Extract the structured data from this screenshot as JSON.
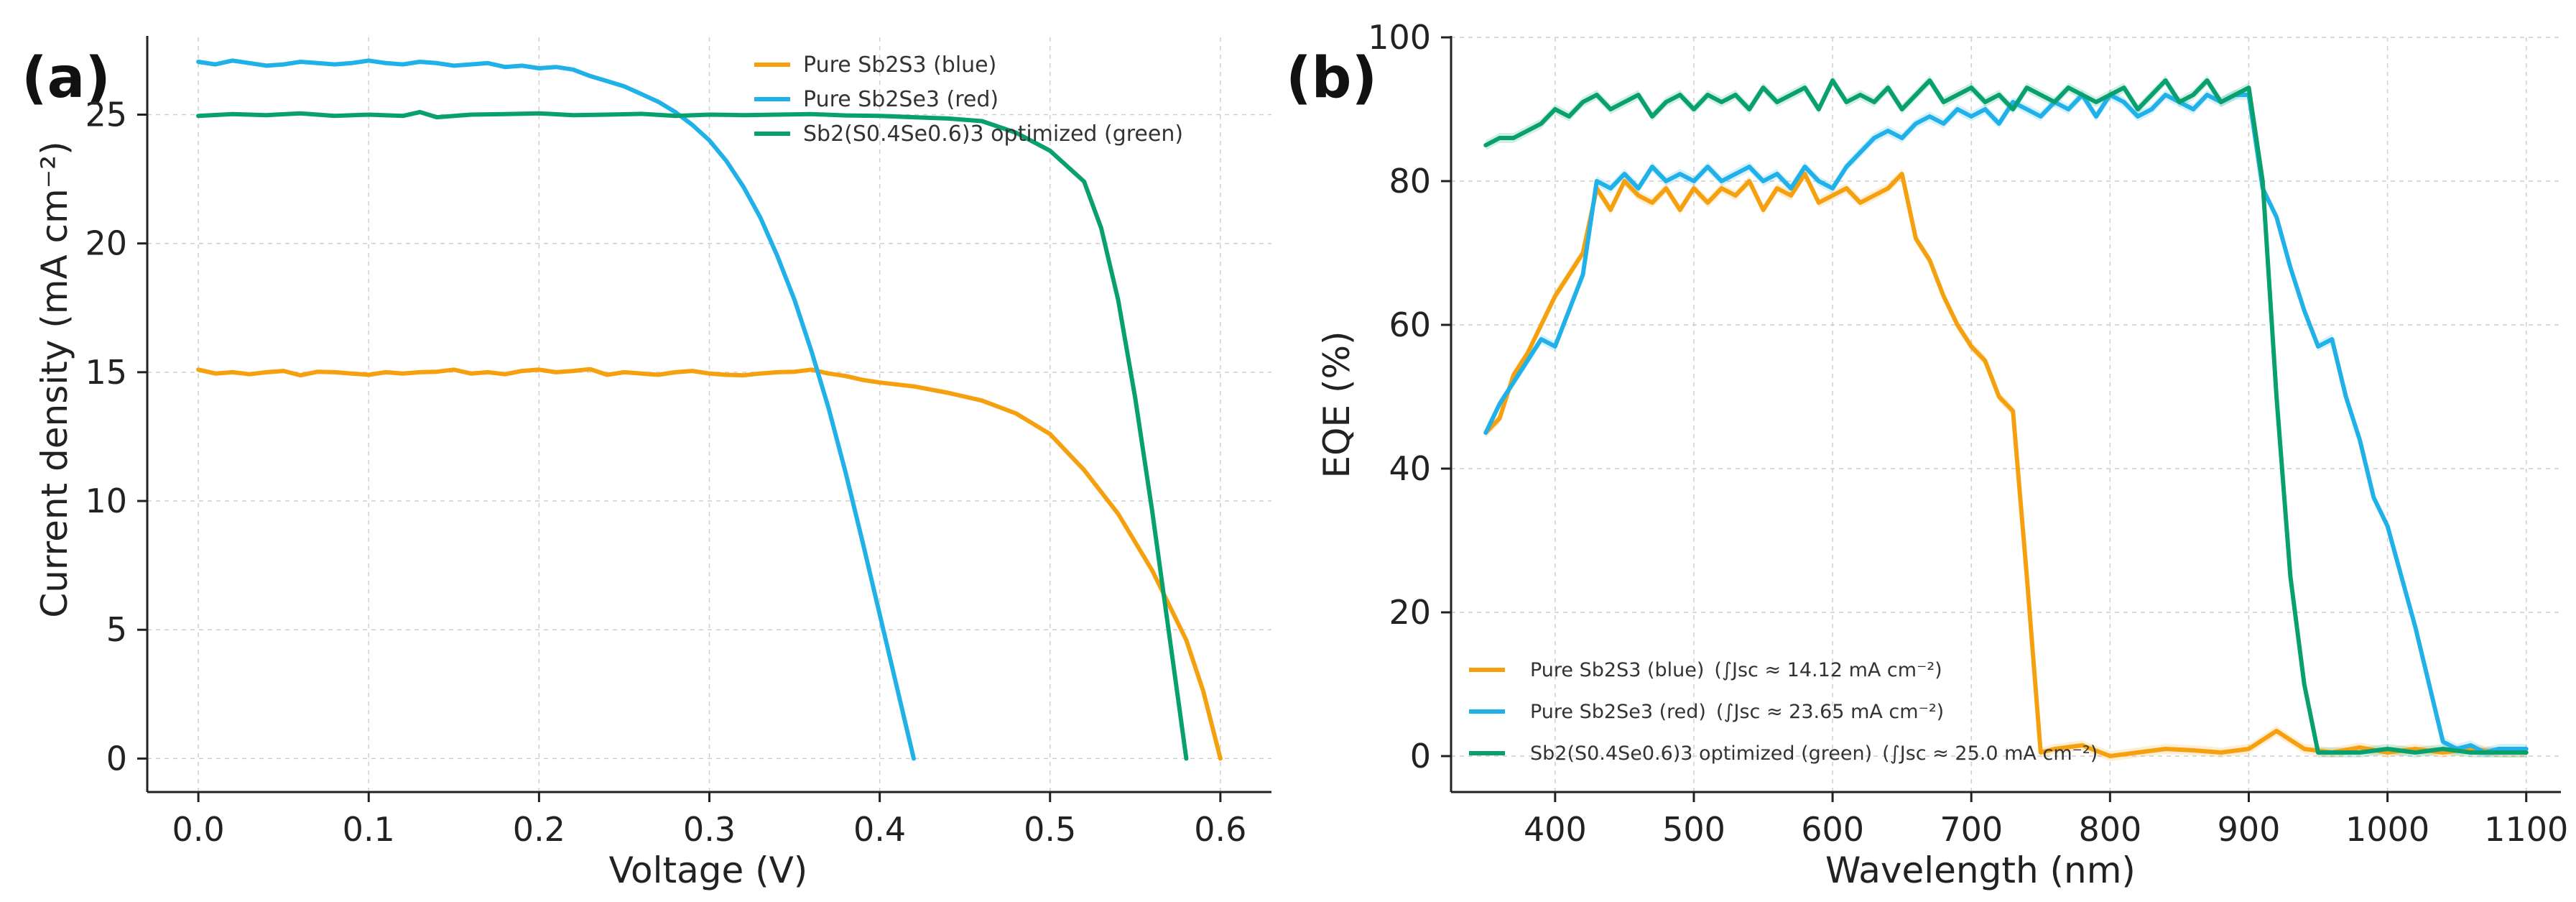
{
  "colors": {
    "orange": "#F5A00F",
    "blue": "#1FB1E8",
    "green": "#07A06E"
  },
  "chart_data": [
    {
      "panel_label": "(a)",
      "type": "line",
      "xlabel": "Voltage (V)",
      "ylabel": "Current density (mA cm⁻²)",
      "xlim": [
        -0.03,
        0.63
      ],
      "ylim": [
        -1.3,
        28.0
      ],
      "xticks": [
        "0.0",
        "0.1",
        "0.2",
        "0.3",
        "0.4",
        "0.5",
        "0.6"
      ],
      "xtick_values": [
        0.0,
        0.1,
        0.2,
        0.3,
        0.4,
        0.5,
        0.6
      ],
      "yticks": [
        "0",
        "5",
        "10",
        "15",
        "20",
        "25"
      ],
      "ytick_values": [
        0,
        5,
        10,
        15,
        20,
        25
      ],
      "grid": true,
      "legend_position": "top-right",
      "series": [
        {
          "name": "Pure Sb2S3 (blue)",
          "color": "#F5A00F",
          "x": [
            0.0,
            0.01,
            0.02,
            0.03,
            0.04,
            0.05,
            0.06,
            0.07,
            0.08,
            0.09,
            0.1,
            0.11,
            0.12,
            0.13,
            0.14,
            0.15,
            0.16,
            0.17,
            0.18,
            0.19,
            0.2,
            0.21,
            0.22,
            0.23,
            0.24,
            0.25,
            0.26,
            0.27,
            0.28,
            0.29,
            0.3,
            0.31,
            0.32,
            0.33,
            0.34,
            0.35,
            0.36,
            0.37,
            0.38,
            0.39,
            0.4,
            0.42,
            0.44,
            0.46,
            0.48,
            0.5,
            0.52,
            0.54,
            0.56,
            0.58,
            0.59,
            0.6
          ],
          "y": [
            15.1,
            14.95,
            15.0,
            14.92,
            15.0,
            15.05,
            14.88,
            15.02,
            15.0,
            14.95,
            14.9,
            15.0,
            14.95,
            15.0,
            15.02,
            15.1,
            14.95,
            15.0,
            14.92,
            15.05,
            15.1,
            15.0,
            15.05,
            15.12,
            14.9,
            15.0,
            14.95,
            14.9,
            15.0,
            15.05,
            14.95,
            14.9,
            14.88,
            14.95,
            15.0,
            15.02,
            15.1,
            14.95,
            14.85,
            14.7,
            14.6,
            14.45,
            14.2,
            13.9,
            13.4,
            12.6,
            11.2,
            9.5,
            7.3,
            4.6,
            2.6,
            0.0
          ]
        },
        {
          "name": "Pure Sb2Se3 (red)",
          "color": "#1FB1E8",
          "x": [
            0.0,
            0.01,
            0.02,
            0.03,
            0.04,
            0.05,
            0.06,
            0.07,
            0.08,
            0.09,
            0.1,
            0.11,
            0.12,
            0.13,
            0.14,
            0.15,
            0.16,
            0.17,
            0.18,
            0.19,
            0.2,
            0.21,
            0.22,
            0.23,
            0.24,
            0.25,
            0.26,
            0.27,
            0.28,
            0.29,
            0.3,
            0.31,
            0.32,
            0.33,
            0.34,
            0.35,
            0.36,
            0.37,
            0.38,
            0.39,
            0.4,
            0.41,
            0.42
          ],
          "y": [
            27.05,
            26.95,
            27.1,
            27.0,
            26.9,
            26.95,
            27.05,
            27.0,
            26.95,
            27.0,
            27.1,
            27.0,
            26.95,
            27.05,
            27.0,
            26.9,
            26.95,
            27.0,
            26.85,
            26.9,
            26.8,
            26.85,
            26.75,
            26.5,
            26.3,
            26.1,
            25.8,
            25.5,
            25.1,
            24.6,
            24.0,
            23.2,
            22.2,
            21.0,
            19.5,
            17.8,
            15.8,
            13.6,
            11.1,
            8.4,
            5.6,
            2.8,
            0.0
          ]
        },
        {
          "name": "Sb2(S0.4Se0.6)3 optimized (green)",
          "color": "#07A06E",
          "x": [
            0.0,
            0.02,
            0.04,
            0.06,
            0.08,
            0.1,
            0.12,
            0.13,
            0.14,
            0.16,
            0.18,
            0.2,
            0.22,
            0.24,
            0.26,
            0.28,
            0.3,
            0.32,
            0.34,
            0.36,
            0.38,
            0.4,
            0.42,
            0.44,
            0.46,
            0.48,
            0.5,
            0.52,
            0.53,
            0.54,
            0.55,
            0.56,
            0.57,
            0.575,
            0.58
          ],
          "y": [
            24.95,
            25.02,
            24.98,
            25.05,
            24.95,
            25.0,
            24.95,
            25.1,
            24.9,
            25.0,
            25.02,
            25.05,
            24.98,
            25.0,
            25.03,
            24.95,
            25.0,
            24.98,
            25.0,
            25.02,
            24.97,
            24.95,
            24.9,
            24.85,
            24.75,
            24.3,
            23.6,
            22.4,
            20.6,
            17.8,
            14.0,
            9.6,
            4.8,
            2.4,
            0.0
          ]
        }
      ]
    },
    {
      "panel_label": "(b)",
      "type": "line",
      "xlabel": "Wavelength (nm)",
      "ylabel": "EQE (%)",
      "xlim": [
        325,
        1125
      ],
      "ylim": [
        -5,
        100
      ],
      "xticks": [
        "400",
        "500",
        "600",
        "700",
        "800",
        "900",
        "1000",
        "1100"
      ],
      "xtick_values": [
        400,
        500,
        600,
        700,
        800,
        900,
        1000,
        1100
      ],
      "yticks": [
        "0",
        "20",
        "40",
        "60",
        "80",
        "100"
      ],
      "ytick_values": [
        0,
        20,
        40,
        60,
        80,
        100
      ],
      "grid": true,
      "legend_position": "bottom-left",
      "series": [
        {
          "name": "Pure Sb2S3 (blue)",
          "jsc_note": "(∫Jsc ≈ 14.12 mA cm⁻²)",
          "color": "#F5A00F",
          "x": [
            350,
            360,
            370,
            380,
            390,
            400,
            410,
            420,
            430,
            440,
            450,
            460,
            470,
            480,
            490,
            500,
            510,
            520,
            530,
            540,
            550,
            560,
            570,
            580,
            590,
            600,
            610,
            620,
            630,
            640,
            650,
            660,
            670,
            680,
            690,
            700,
            710,
            720,
            730,
            740,
            750,
            760,
            780,
            800,
            820,
            840,
            860,
            880,
            900,
            920,
            940,
            960,
            980,
            1000,
            1020,
            1040,
            1060,
            1080,
            1100
          ],
          "y": [
            45,
            47,
            53,
            56,
            60,
            64,
            67,
            70,
            79,
            76,
            80,
            78,
            77,
            79,
            76,
            79,
            77,
            79,
            78,
            80,
            76,
            79,
            78,
            81,
            77,
            78,
            79,
            77,
            78,
            79,
            81,
            72,
            69,
            64,
            60,
            57,
            55,
            50,
            48,
            25,
            0.5,
            1,
            1.5,
            0,
            0.5,
            1,
            0.8,
            0.5,
            1,
            3.5,
            1,
            0.5,
            1.2,
            0.5,
            1,
            0.5,
            1,
            0.5,
            0.5
          ]
        },
        {
          "name": "Pure Sb2Se3 (red)",
          "jsc_note": "(∫Jsc ≈ 23.65 mA cm⁻²)",
          "color": "#1FB1E8",
          "x": [
            350,
            360,
            370,
            380,
            390,
            400,
            410,
            420,
            430,
            440,
            450,
            460,
            470,
            480,
            490,
            500,
            510,
            520,
            530,
            540,
            550,
            560,
            570,
            580,
            590,
            600,
            610,
            620,
            630,
            640,
            650,
            660,
            670,
            680,
            690,
            700,
            710,
            720,
            730,
            740,
            750,
            760,
            770,
            780,
            790,
            800,
            810,
            820,
            830,
            840,
            850,
            860,
            870,
            880,
            890,
            900,
            910,
            920,
            930,
            940,
            950,
            960,
            970,
            980,
            990,
            1000,
            1010,
            1020,
            1030,
            1040,
            1050,
            1060,
            1070,
            1080,
            1100
          ],
          "y": [
            45,
            49,
            52,
            55,
            58,
            57,
            62,
            67,
            80,
            79,
            81,
            79,
            82,
            80,
            81,
            80,
            82,
            80,
            81,
            82,
            80,
            81,
            79,
            82,
            80,
            79,
            82,
            84,
            86,
            87,
            86,
            88,
            89,
            88,
            90,
            89,
            90,
            88,
            91,
            90,
            89,
            91,
            90,
            92,
            89,
            92,
            91,
            89,
            90,
            92,
            91,
            90,
            92,
            91,
            92,
            92,
            79,
            75,
            68,
            62,
            57,
            58,
            50,
            44,
            36,
            32,
            25,
            18,
            10,
            2,
            1,
            1.5,
            0.5,
            1,
            1
          ]
        },
        {
          "name": "Sb2(S0.4Se0.6)3 optimized (green)",
          "jsc_note": "(∫Jsc ≈ 25.0 mA cm⁻²)",
          "color": "#07A06E",
          "x": [
            350,
            360,
            370,
            380,
            390,
            400,
            410,
            420,
            430,
            440,
            450,
            460,
            470,
            480,
            490,
            500,
            510,
            520,
            530,
            540,
            550,
            560,
            570,
            580,
            590,
            600,
            610,
            620,
            630,
            640,
            650,
            660,
            670,
            680,
            690,
            700,
            710,
            720,
            730,
            740,
            750,
            760,
            770,
            780,
            790,
            800,
            810,
            820,
            830,
            840,
            850,
            860,
            870,
            880,
            890,
            900,
            910,
            920,
            930,
            940,
            950,
            960,
            980,
            1000,
            1020,
            1040,
            1060,
            1080,
            1100
          ],
          "y": [
            85,
            86,
            86,
            87,
            88,
            90,
            89,
            91,
            92,
            90,
            91,
            92,
            89,
            91,
            92,
            90,
            92,
            91,
            92,
            90,
            93,
            91,
            92,
            93,
            90,
            94,
            91,
            92,
            91,
            93,
            90,
            92,
            94,
            91,
            92,
            93,
            91,
            92,
            90,
            93,
            92,
            91,
            93,
            92,
            91,
            92,
            93,
            90,
            92,
            94,
            91,
            92,
            94,
            91,
            92,
            93,
            80,
            50,
            25,
            10,
            0.5,
            0.5,
            0.5,
            1,
            0.5,
            1,
            0.5,
            0.5,
            0.5
          ]
        }
      ]
    }
  ]
}
